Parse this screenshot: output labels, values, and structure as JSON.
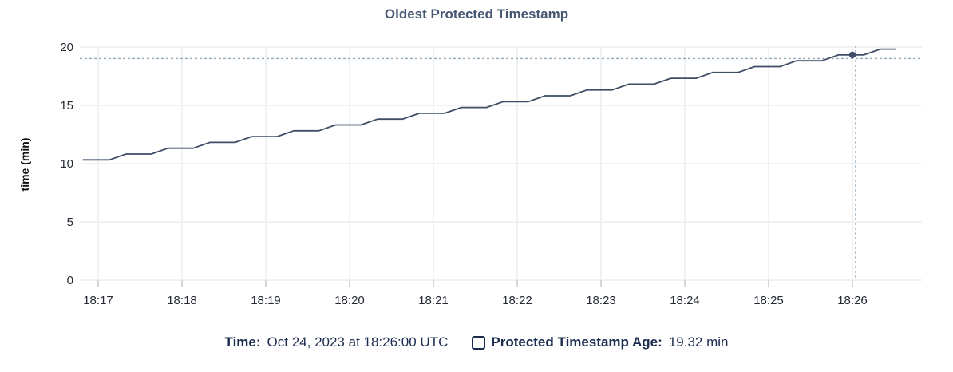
{
  "title": {
    "text": "Oldest Protected Timestamp"
  },
  "legend": {
    "time_label": "Time:",
    "time_value": "Oct 24, 2023 at 18:26:00 UTC",
    "series_label": "Protected Timestamp Age:",
    "series_value": "19.32 min"
  },
  "colors": {
    "series_line": "#3f4e67",
    "hover_dot": "#3f4e67",
    "crosshair": "#93a9b8",
    "grid": "#f0f1f2",
    "tick_mark": "#d2d6da",
    "axis_text": "#242933",
    "axis_title_text": "#111111",
    "title_text": "#475872",
    "legend_text": "#1b2c4f",
    "background": "#ffffff"
  },
  "chart_data": {
    "type": "line",
    "title": "Oldest Protected Timestamp",
    "xlabel": "",
    "ylabel": "time (min)",
    "ylim": [
      0,
      20
    ],
    "yticks": [
      0,
      5,
      10,
      15,
      20
    ],
    "grid": true,
    "legend_position": "bottom",
    "x_unit": "seconds after 18:17:00 UTC on Oct 24, 2023",
    "x_ticks": [
      {
        "label": "18:17",
        "t": 0
      },
      {
        "label": "18:18",
        "t": 60
      },
      {
        "label": "18:19",
        "t": 120
      },
      {
        "label": "18:20",
        "t": 180
      },
      {
        "label": "18:21",
        "t": 240
      },
      {
        "label": "18:22",
        "t": 300
      },
      {
        "label": "18:23",
        "t": 360
      },
      {
        "label": "18:24",
        "t": 420
      },
      {
        "label": "18:25",
        "t": 480
      },
      {
        "label": "18:26",
        "t": 540
      }
    ],
    "series": [
      {
        "name": "Protected Timestamp Age",
        "unit": "min",
        "points": [
          [
            -11,
            10.32
          ],
          [
            8,
            10.32
          ],
          [
            20,
            10.82
          ],
          [
            38,
            10.82
          ],
          [
            50,
            11.32
          ],
          [
            68,
            11.32
          ],
          [
            80,
            11.82
          ],
          [
            98,
            11.82
          ],
          [
            110,
            12.32
          ],
          [
            128,
            12.32
          ],
          [
            140,
            12.82
          ],
          [
            158,
            12.82
          ],
          [
            170,
            13.32
          ],
          [
            188,
            13.32
          ],
          [
            200,
            13.82
          ],
          [
            218,
            13.82
          ],
          [
            230,
            14.32
          ],
          [
            248,
            14.32
          ],
          [
            260,
            14.82
          ],
          [
            278,
            14.82
          ],
          [
            290,
            15.32
          ],
          [
            308,
            15.32
          ],
          [
            320,
            15.82
          ],
          [
            338,
            15.82
          ],
          [
            350,
            16.32
          ],
          [
            368,
            16.32
          ],
          [
            380,
            16.82
          ],
          [
            398,
            16.82
          ],
          [
            410,
            17.32
          ],
          [
            428,
            17.32
          ],
          [
            440,
            17.82
          ],
          [
            458,
            17.82
          ],
          [
            470,
            18.32
          ],
          [
            488,
            18.32
          ],
          [
            500,
            18.82
          ],
          [
            518,
            18.82
          ],
          [
            530,
            19.32
          ],
          [
            548,
            19.32
          ],
          [
            560,
            19.82
          ],
          [
            571,
            19.82
          ]
        ]
      }
    ],
    "hover": {
      "t": 540,
      "time_label": "Oct 24, 2023 at 18:26:00 UTC",
      "value": 19.32,
      "value_label": "19.32 min"
    }
  }
}
